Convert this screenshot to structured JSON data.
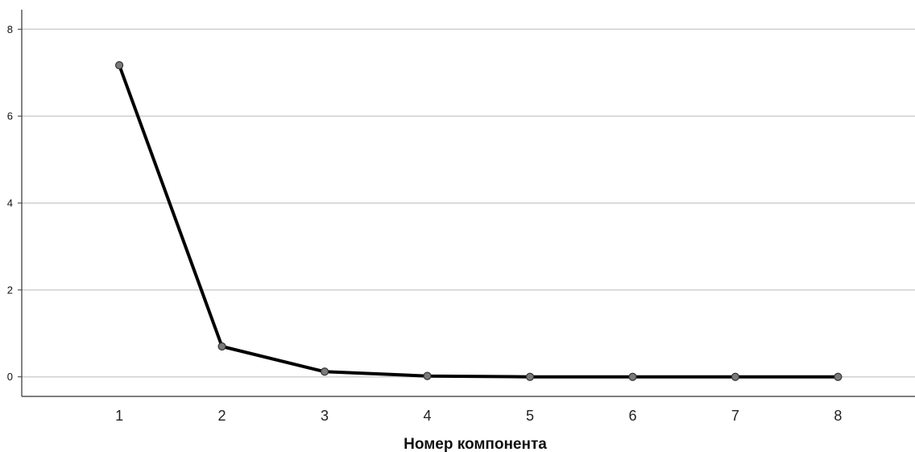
{
  "chart_data": {
    "type": "line",
    "title": "",
    "xlabel": "Номер компонента",
    "ylabel": "",
    "x": [
      1,
      2,
      3,
      4,
      5,
      6,
      7,
      8
    ],
    "values": [
      7.17,
      0.7,
      0.12,
      0.02,
      0.0,
      0.0,
      0.0,
      0.0
    ],
    "y_ticks": [
      "0",
      "2",
      "4",
      "6",
      "8"
    ],
    "x_ticks": [
      "1",
      "2",
      "3",
      "4",
      "5",
      "6",
      "7",
      "8"
    ],
    "ylim": [
      -0.45,
      8.45
    ],
    "xlim": [
      0.05,
      8.75
    ],
    "grid": true,
    "legend": "none",
    "colors": {
      "line": "#000000",
      "marker_fill": "#7a7a7a",
      "marker_stroke": "#333333",
      "grid": "#cfcfcf",
      "axis": "#333333"
    }
  }
}
